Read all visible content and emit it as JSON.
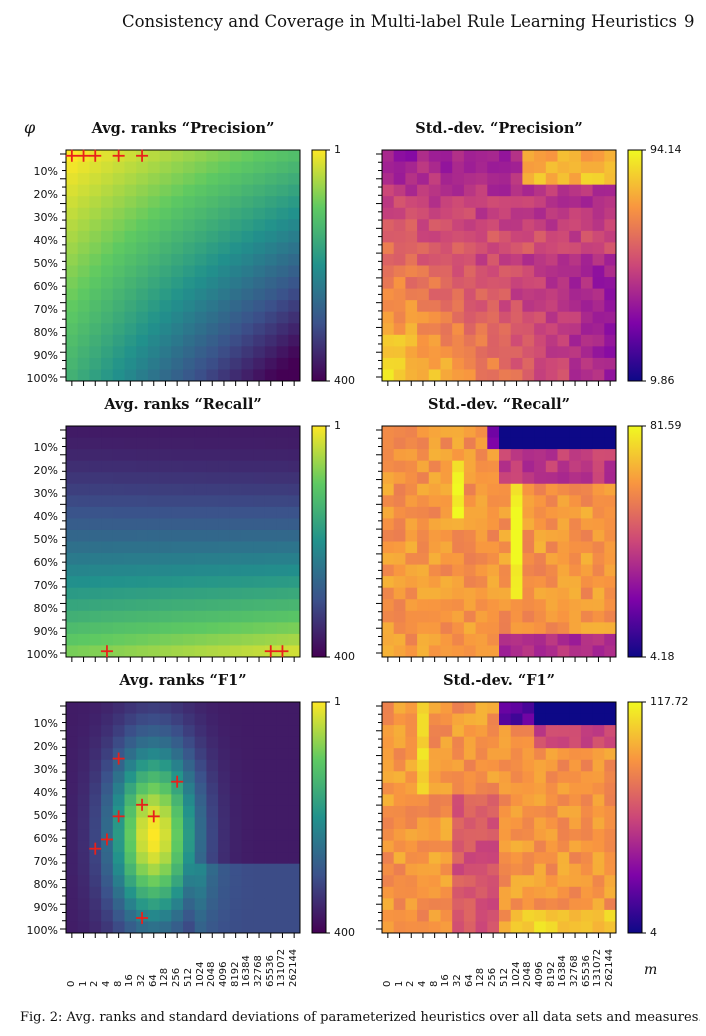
{
  "header": {
    "title": "Consistency and Coverage in Multi-label Rule Learning Heuristics",
    "page_number": "9"
  },
  "figure": {
    "y_axis_symbol": "φ",
    "x_axis_symbol": "m",
    "phi_labels": [
      "10%",
      "20%",
      "30%",
      "40%",
      "50%",
      "60%",
      "70%",
      "80%",
      "90%",
      "100%"
    ],
    "m_labels": [
      "0",
      "1",
      "2",
      "4",
      "8",
      "16",
      "32",
      "64",
      "128",
      "256",
      "512",
      "1024",
      "2048",
      "4096",
      "8192",
      "16384",
      "32768",
      "65536",
      "131072",
      "262144"
    ],
    "colormaps": {
      "ranks": [
        "#440154",
        "#3b528b",
        "#21918c",
        "#5ec962",
        "#fde725"
      ],
      "stddev": [
        "#0d0887",
        "#7e03a8",
        "#cc4778",
        "#f89540",
        "#f0f921"
      ]
    },
    "panels": [
      {
        "title": "Avg. ranks “Precision”",
        "kind": "ranks",
        "measure": "precision",
        "cbar_top": "1",
        "cbar_bottom": "400"
      },
      {
        "title": "Std.-dev. “Precision”",
        "kind": "stddev",
        "measure": "precision",
        "cbar_top": "94.14",
        "cbar_bottom": "9.86"
      },
      {
        "title": "Avg. ranks “Recall”",
        "kind": "ranks",
        "measure": "recall",
        "cbar_top": "1",
        "cbar_bottom": "400"
      },
      {
        "title": "Std.-dev. “Recall”",
        "kind": "stddev",
        "measure": "recall",
        "cbar_top": "81.59",
        "cbar_bottom": "4.18"
      },
      {
        "title": "Avg. ranks “F1”",
        "kind": "ranks",
        "measure": "f1",
        "cbar_top": "1",
        "cbar_bottom": "400"
      },
      {
        "title": "Std.-dev. “F1”",
        "kind": "stddev",
        "measure": "f1",
        "cbar_top": "117.72",
        "cbar_bottom": "4"
      }
    ]
  },
  "chart_data": [
    {
      "type": "heatmap",
      "title": "Avg. ranks “Precision”",
      "zlim": [
        1,
        400
      ],
      "markers_m_phi": [
        [
          0,
          "1%"
        ],
        [
          1,
          "1%"
        ],
        [
          2,
          "1%"
        ],
        [
          8,
          "1%"
        ],
        [
          32,
          "1%"
        ]
      ]
    },
    {
      "type": "heatmap",
      "title": "Std.-dev. “Precision”",
      "zlim": [
        9.86,
        94.14
      ]
    },
    {
      "type": "heatmap",
      "title": "Avg. ranks “Recall”",
      "zlim": [
        1,
        400
      ],
      "markers_m_phi": [
        [
          4,
          "100%"
        ],
        [
          65536,
          "100%"
        ],
        [
          131072,
          "100%"
        ]
      ]
    },
    {
      "type": "heatmap",
      "title": "Std.-dev. “Recall”",
      "zlim": [
        4.18,
        81.59
      ]
    },
    {
      "type": "heatmap",
      "title": "Avg. ranks “F1”",
      "zlim": [
        1,
        400
      ],
      "markers_m_phi": [
        [
          8,
          "27%"
        ],
        [
          256,
          "37%"
        ],
        [
          32,
          "47%"
        ],
        [
          8,
          "52%"
        ],
        [
          64,
          "52%"
        ],
        [
          4,
          "62%"
        ],
        [
          2,
          "66%"
        ],
        [
          32,
          "96%"
        ]
      ]
    },
    {
      "type": "heatmap",
      "title": "Std.-dev. “F1”",
      "zlim": [
        4,
        117.72
      ]
    }
  ],
  "caption": "Fig. 2: Avg. ranks and standard deviations of parameterized heuristics over all data sets and measures."
}
